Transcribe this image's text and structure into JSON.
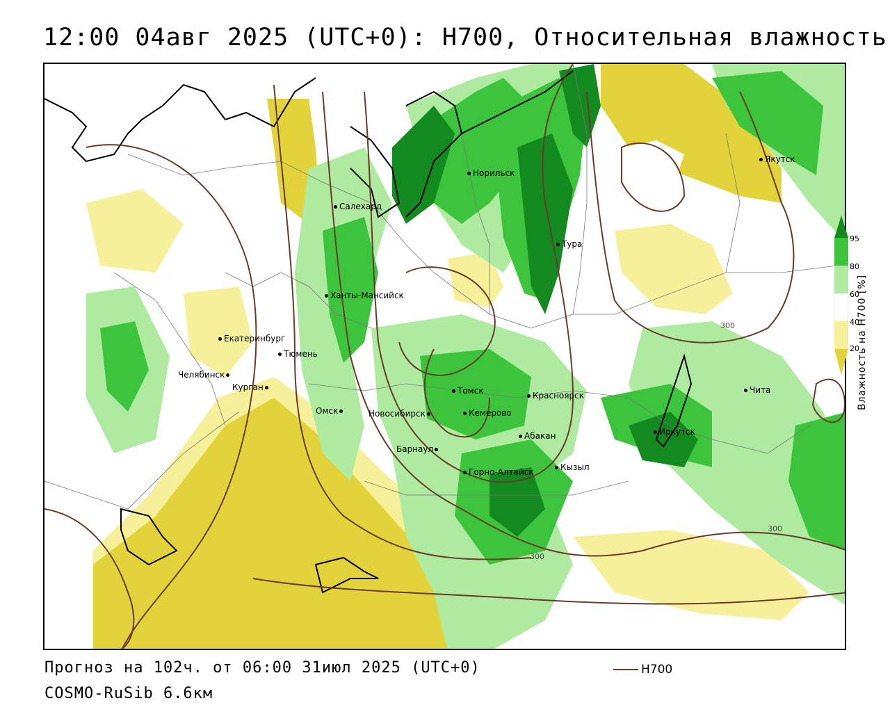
{
  "title": "12:00 04авг 2025 (UTC+0): H700, Относительная влажность",
  "footer": {
    "forecast": "Прогноз на 102ч. от 06:00 31июл 2025 (UTC+0)",
    "model": "COSMO-RuSib 6.6км",
    "contour_key": "H700"
  },
  "legend": {
    "label": "Влажность на H700 [%]",
    "ticks": [
      "95",
      "80",
      "60",
      "40",
      "20"
    ],
    "colors": {
      "c95": "#138a1f",
      "c80": "#3cc43c",
      "c60": "#aeeaa0",
      "c40": "#ffffff",
      "c20": "#f7f09a",
      "c0": "#e3d33a"
    }
  },
  "contour_labels": [
    "300",
    "300",
    "300"
  ],
  "cities": [
    {
      "name": "Норильск"
    },
    {
      "name": "Якутск"
    },
    {
      "name": "Салехард"
    },
    {
      "name": "Тура"
    },
    {
      "name": "Ханты-Мансийск"
    },
    {
      "name": "Екатеринбург"
    },
    {
      "name": "Тюмень"
    },
    {
      "name": "Челябинск"
    },
    {
      "name": "Курган"
    },
    {
      "name": "Омск"
    },
    {
      "name": "Томск"
    },
    {
      "name": "Красноярск"
    },
    {
      "name": "Новосибирск"
    },
    {
      "name": "Кемерово"
    },
    {
      "name": "Абакан"
    },
    {
      "name": "Барнаул"
    },
    {
      "name": "Горно-Алтайск"
    },
    {
      "name": "Кызыл"
    },
    {
      "name": "Иркутск"
    },
    {
      "name": "Чита"
    }
  ]
}
